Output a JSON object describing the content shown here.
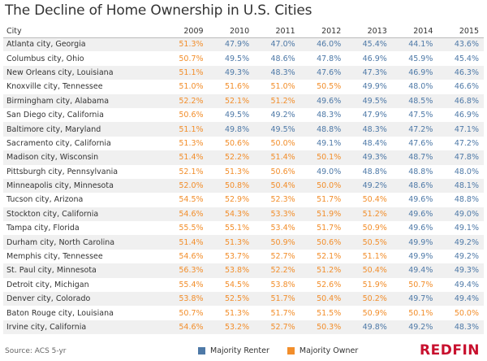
{
  "title": "The Decline of Home Ownership in U.S. Cities",
  "source": "Source: ACS 5-yr",
  "brand": {
    "text": "REDFIN",
    "color": "#c8102e"
  },
  "legend": [
    {
      "label": "Majority Renter",
      "color": "#4e79a7"
    },
    {
      "label": "Majority Owner",
      "color": "#f28e2b"
    }
  ],
  "chart_data": {
    "type": "table",
    "title": "The Decline of Home Ownership in U.S. Cities",
    "columns": [
      "City",
      "2009",
      "2010",
      "2011",
      "2012",
      "2013",
      "2014",
      "2015"
    ],
    "rows": [
      {
        "city": "Atlanta city, Georgia",
        "values": [
          "51.3%",
          "47.9%",
          "47.0%",
          "46.0%",
          "45.4%",
          "44.1%",
          "43.6%"
        ]
      },
      {
        "city": "Columbus city, Ohio",
        "values": [
          "50.7%",
          "49.5%",
          "48.6%",
          "47.8%",
          "46.9%",
          "45.9%",
          "45.4%"
        ]
      },
      {
        "city": "New Orleans city, Louisiana",
        "values": [
          "51.1%",
          "49.3%",
          "48.3%",
          "47.6%",
          "47.3%",
          "46.9%",
          "46.3%"
        ]
      },
      {
        "city": "Knoxville city, Tennessee",
        "values": [
          "51.0%",
          "51.6%",
          "51.0%",
          "50.5%",
          "49.9%",
          "48.0%",
          "46.6%"
        ]
      },
      {
        "city": "Birmingham city, Alabama",
        "values": [
          "52.2%",
          "52.1%",
          "51.2%",
          "49.6%",
          "49.5%",
          "48.5%",
          "46.8%"
        ]
      },
      {
        "city": "San Diego city, California",
        "values": [
          "50.6%",
          "49.5%",
          "49.2%",
          "48.3%",
          "47.9%",
          "47.5%",
          "46.9%"
        ]
      },
      {
        "city": "Baltimore city, Maryland",
        "values": [
          "51.1%",
          "49.8%",
          "49.5%",
          "48.8%",
          "48.3%",
          "47.2%",
          "47.1%"
        ]
      },
      {
        "city": "Sacramento city, California",
        "values": [
          "51.3%",
          "50.6%",
          "50.0%",
          "49.1%",
          "48.4%",
          "47.6%",
          "47.2%"
        ]
      },
      {
        "city": "Madison city, Wisconsin",
        "values": [
          "51.4%",
          "52.2%",
          "51.4%",
          "50.1%",
          "49.3%",
          "48.7%",
          "47.8%"
        ]
      },
      {
        "city": "Pittsburgh city, Pennsylvania",
        "values": [
          "52.1%",
          "51.3%",
          "50.6%",
          "49.0%",
          "48.8%",
          "48.8%",
          "48.0%"
        ]
      },
      {
        "city": "Minneapolis city, Minnesota",
        "values": [
          "52.0%",
          "50.8%",
          "50.4%",
          "50.0%",
          "49.2%",
          "48.6%",
          "48.1%"
        ]
      },
      {
        "city": "Tucson city, Arizona",
        "values": [
          "54.5%",
          "52.9%",
          "52.3%",
          "51.7%",
          "50.4%",
          "49.6%",
          "48.8%"
        ]
      },
      {
        "city": "Stockton city, California",
        "values": [
          "54.6%",
          "54.3%",
          "53.3%",
          "51.9%",
          "51.2%",
          "49.6%",
          "49.0%"
        ]
      },
      {
        "city": "Tampa city, Florida",
        "values": [
          "55.5%",
          "55.1%",
          "53.4%",
          "51.7%",
          "50.9%",
          "49.6%",
          "49.1%"
        ]
      },
      {
        "city": "Durham city, North Carolina",
        "values": [
          "51.4%",
          "51.3%",
          "50.9%",
          "50.6%",
          "50.5%",
          "49.9%",
          "49.2%"
        ]
      },
      {
        "city": "Memphis city, Tennessee",
        "values": [
          "54.6%",
          "53.7%",
          "52.7%",
          "52.1%",
          "51.1%",
          "49.9%",
          "49.2%"
        ]
      },
      {
        "city": "St. Paul city, Minnesota",
        "values": [
          "56.3%",
          "53.8%",
          "52.2%",
          "51.2%",
          "50.4%",
          "49.4%",
          "49.3%"
        ]
      },
      {
        "city": "Detroit city, Michigan",
        "values": [
          "55.4%",
          "54.5%",
          "53.8%",
          "52.6%",
          "51.9%",
          "50.7%",
          "49.4%"
        ]
      },
      {
        "city": "Denver city, Colorado",
        "values": [
          "53.8%",
          "52.5%",
          "51.7%",
          "50.4%",
          "50.2%",
          "49.7%",
          "49.4%"
        ]
      },
      {
        "city": "Baton Rouge city, Louisiana",
        "values": [
          "50.7%",
          "51.3%",
          "51.7%",
          "51.5%",
          "50.9%",
          "50.1%",
          "50.0%"
        ]
      },
      {
        "city": "Irvine city, California",
        "values": [
          "54.6%",
          "53.2%",
          "52.7%",
          "50.3%",
          "49.8%",
          "49.2%",
          "48.3%"
        ]
      }
    ]
  }
}
